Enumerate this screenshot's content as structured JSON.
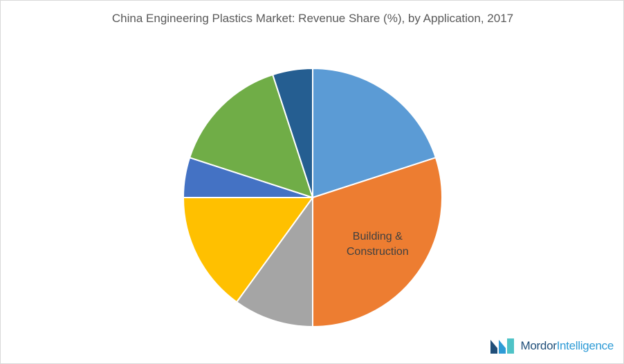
{
  "chart_data": {
    "type": "pie",
    "title": "China Engineering Plastics Market: Revenue Share (%), by Application, 2017",
    "categories": [
      null,
      "Building & Construction",
      null,
      null,
      null,
      null,
      null
    ],
    "values": [
      20,
      30,
      10,
      15,
      5,
      15,
      5
    ],
    "colors": [
      "#5b9bd5",
      "#ed7d31",
      "#a5a5a5",
      "#ffc000",
      "#4472c4",
      "#70ad47",
      "#255e91"
    ]
  },
  "logo": {
    "brand": "Mordor",
    "suffix": "Intelligence"
  }
}
